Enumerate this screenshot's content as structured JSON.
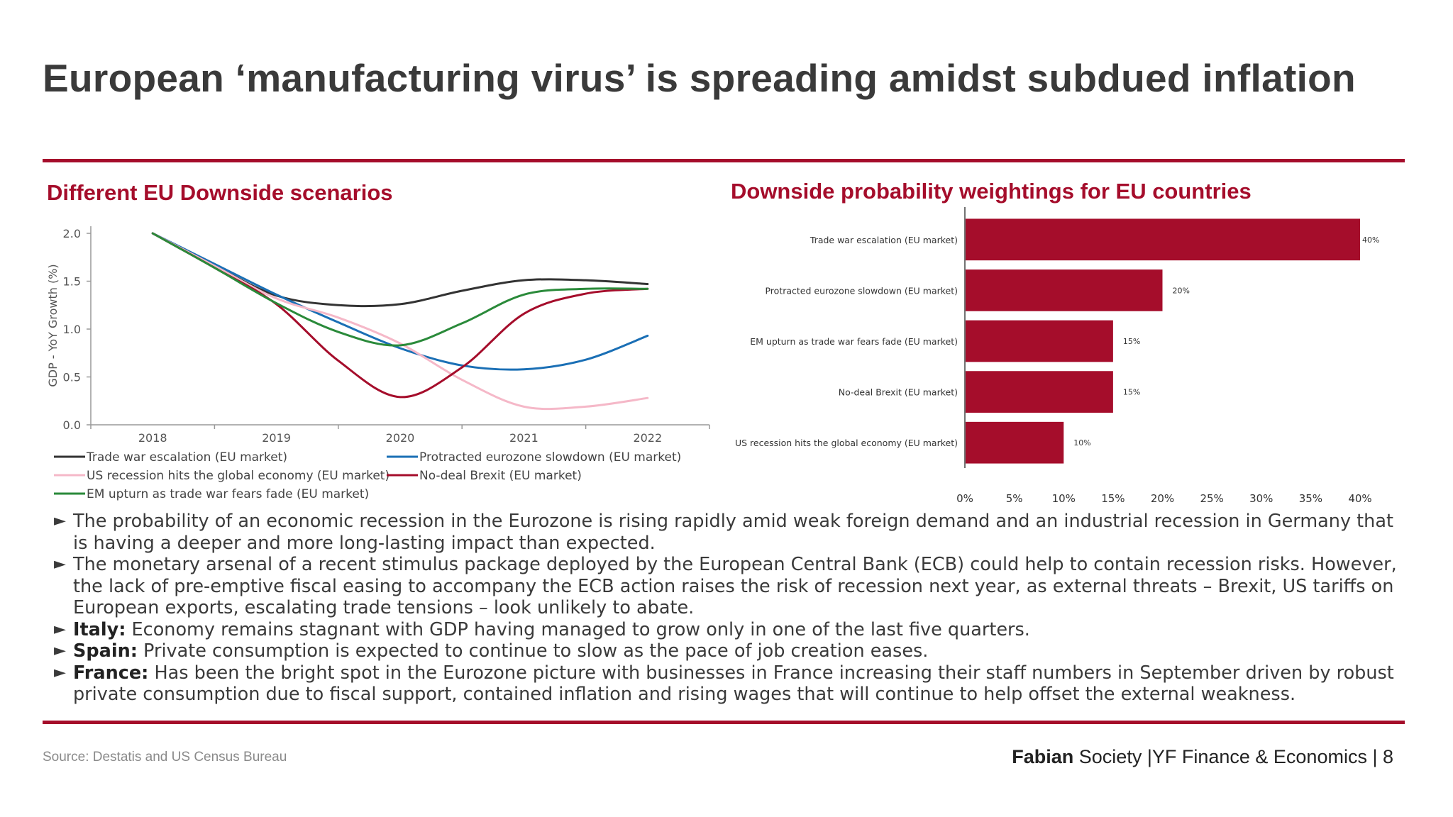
{
  "title": "European ‘manufacturing virus’ is spreading amidst subdued inflation",
  "left_section_title": "Different EU Downside scenarios",
  "right_section_title": "Downside probability weightings for EU countries",
  "colors": {
    "accent": "#a50d2b",
    "text": "#3a3a3a"
  },
  "chart_data": [
    {
      "type": "line",
      "ylabel": "GDP - YoY Growth (%)",
      "xlabel": "",
      "x": [
        "2018",
        "2019",
        "2020",
        "2021",
        "2022"
      ],
      "ylim": [
        0.0,
        2.0
      ],
      "yticks": [
        "0.0",
        "0.5",
        "1.0",
        "1.5",
        "2.0"
      ],
      "legend_position": "bottom",
      "series": [
        {
          "name": "Trade war escalation (EU market)",
          "color": "#333333",
          "points": [
            [
              2018,
              2.0
            ],
            [
              2018.5,
              1.66
            ],
            [
              2019,
              1.35
            ],
            [
              2019.5,
              1.25
            ],
            [
              2020,
              1.26
            ],
            [
              2020.5,
              1.4
            ],
            [
              2021,
              1.51
            ],
            [
              2021.5,
              1.51
            ],
            [
              2022,
              1.47
            ]
          ]
        },
        {
          "name": "Protracted eurozone slowdown (EU market)",
          "color": "#1a6fb5",
          "points": [
            [
              2018,
              2.0
            ],
            [
              2018.5,
              1.68
            ],
            [
              2019,
              1.36
            ],
            [
              2019.5,
              1.07
            ],
            [
              2020,
              0.8
            ],
            [
              2020.5,
              0.62
            ],
            [
              2021,
              0.58
            ],
            [
              2021.5,
              0.68
            ],
            [
              2022,
              0.93
            ]
          ]
        },
        {
          "name": "US recession hits the global economy (EU market)",
          "color": "#f5b8c8",
          "points": [
            [
              2018,
              2.0
            ],
            [
              2018.5,
              1.66
            ],
            [
              2019,
              1.32
            ],
            [
              2019.5,
              1.12
            ],
            [
              2020,
              0.85
            ],
            [
              2020.5,
              0.47
            ],
            [
              2021,
              0.19
            ],
            [
              2021.5,
              0.19
            ],
            [
              2022,
              0.28
            ]
          ]
        },
        {
          "name": "No-deal Brexit (EU market)",
          "color": "#a50d2b",
          "points": [
            [
              2018,
              2.0
            ],
            [
              2018.5,
              1.64
            ],
            [
              2019,
              1.26
            ],
            [
              2019.5,
              0.67
            ],
            [
              2020,
              0.29
            ],
            [
              2020.5,
              0.6
            ],
            [
              2021,
              1.16
            ],
            [
              2021.5,
              1.37
            ],
            [
              2022,
              1.42
            ]
          ]
        },
        {
          "name": "EM upturn as trade war fears fade (EU market)",
          "color": "#2a8a3a",
          "points": [
            [
              2018,
              2.0
            ],
            [
              2018.5,
              1.64
            ],
            [
              2019,
              1.27
            ],
            [
              2019.5,
              0.97
            ],
            [
              2020,
              0.83
            ],
            [
              2020.5,
              1.06
            ],
            [
              2021,
              1.36
            ],
            [
              2021.5,
              1.42
            ],
            [
              2022,
              1.42
            ]
          ]
        }
      ]
    },
    {
      "type": "bar",
      "orientation": "horizontal",
      "color": "#a50d2b",
      "categories": [
        "Trade war escalation (EU market)",
        "Protracted eurozone slowdown (EU market)",
        "EM upturn as trade war fears fade (EU market)",
        "No-deal Brexit (EU market)",
        "US recession hits the global economy (EU market)"
      ],
      "values": [
        40,
        20,
        15,
        15,
        10
      ],
      "data_labels": [
        "40%",
        "20%",
        "15%",
        "15%",
        "10%"
      ],
      "xlim": [
        0,
        40
      ],
      "xticks": [
        "0%",
        "5%",
        "10%",
        "15%",
        "20%",
        "25%",
        "30%",
        "35%",
        "40%"
      ]
    }
  ],
  "bullets": [
    {
      "lead": "",
      "text": "The probability of an economic recession in the Eurozone is rising rapidly amid weak foreign demand and an industrial recession in Germany that is having a deeper and more long-lasting impact than expected."
    },
    {
      "lead": "",
      "text": "The monetary arsenal of a recent stimulus package deployed by the European Central Bank (ECB) could help to contain recession risks. However, the lack of pre-emptive fiscal easing to accompany the ECB action raises the risk of recession next year, as external threats – Brexit, US tariffs on European exports, escalating trade tensions – look unlikely to abate."
    },
    {
      "lead": "Italy:",
      "text": " Economy remains stagnant with GDP having managed to grow only in one of the last five quarters."
    },
    {
      "lead": "Spain:",
      "text": " Private consumption is expected to continue to slow as the pace of job creation eases."
    },
    {
      "lead": "France:",
      "text": " Has been the bright spot in the Eurozone picture with businesses in France increasing their staff numbers in September driven by robust private consumption due to fiscal support, contained inflation and rising wages that will continue to help offset the external weakness."
    }
  ],
  "bullet_marker": "►",
  "source": "Source: Destatis and US Census Bureau",
  "footer": {
    "brand": "Fabian",
    "rest": " Society |YF Finance & Economics | 8"
  }
}
